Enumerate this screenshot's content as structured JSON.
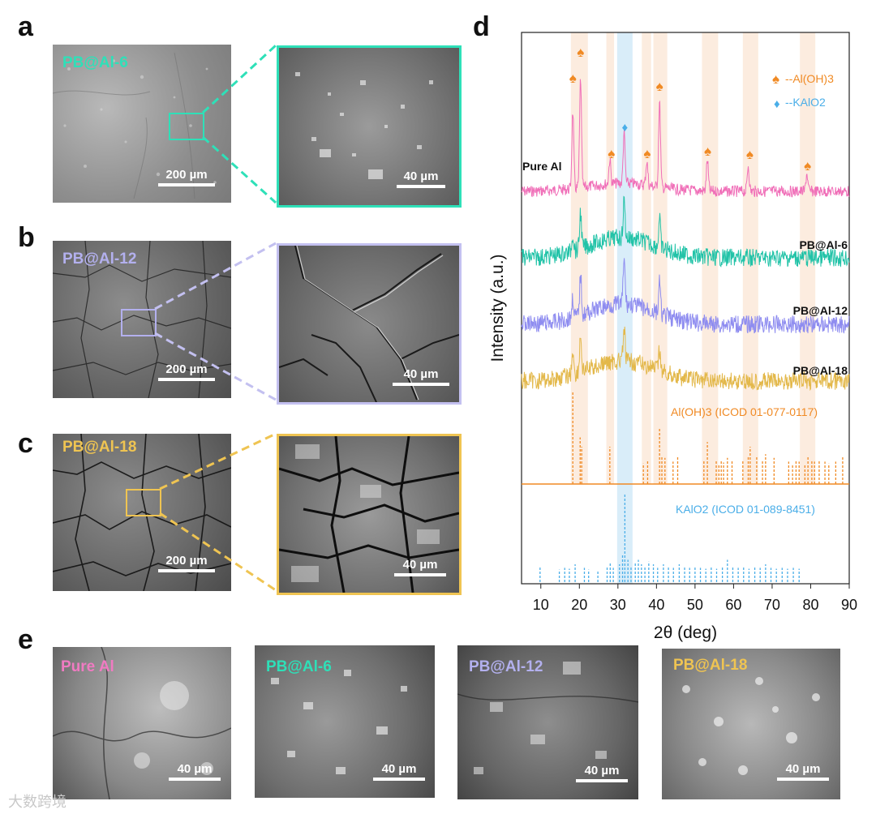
{
  "figure": {
    "panel_letters": [
      "a",
      "b",
      "c",
      "d",
      "e"
    ],
    "panels_abc": [
      {
        "label": "PB@Al-6",
        "color": "#2ee0b8",
        "overview_scale": "200 µm",
        "zoom_scale": "40 µm"
      },
      {
        "label": "PB@Al-12",
        "color": "#b3b0ee",
        "overview_scale": "200 µm",
        "zoom_scale": "40 µm"
      },
      {
        "label": "PB@Al-18",
        "color": "#efc452",
        "overview_scale": "200 µm",
        "zoom_scale": "40 µm"
      }
    ],
    "panel_e": [
      {
        "label": "Pure Al",
        "color": "#f07bc2",
        "scale": "40 µm"
      },
      {
        "label": "PB@Al-6",
        "color": "#2ee0b8",
        "scale": "40 µm"
      },
      {
        "label": "PB@Al-12",
        "color": "#b3b0ee",
        "scale": "40 µm"
      },
      {
        "label": "PB@Al-18",
        "color": "#efc452",
        "scale": "40 µm"
      }
    ],
    "watermark": "大数跨境"
  },
  "chart_data": {
    "type": "line",
    "xlabel": "2θ (deg)",
    "ylabel": "Intensity (a.u.)",
    "xlim": [
      5,
      90
    ],
    "xticks": [
      10,
      20,
      30,
      40,
      50,
      60,
      70,
      80,
      90
    ],
    "series": [
      {
        "name": "Pure Al",
        "color": "#f06fb8",
        "peaks": [
          18.3,
          20.3,
          27.9,
          31.6,
          37.5,
          40.8,
          53.2,
          63.8,
          79.0
        ]
      },
      {
        "name": "PB@Al-6",
        "color": "#22c3a8",
        "peaks": [
          18.3,
          20.3,
          31.6,
          40.8
        ]
      },
      {
        "name": "PB@Al-12",
        "color": "#8e8cf0",
        "peaks": [
          18.3,
          20.3,
          31.6,
          40.8
        ]
      },
      {
        "name": "PB@Al-18",
        "color": "#e3b84a",
        "peaks": [
          18.3,
          20.3,
          31.6,
          40.8
        ]
      }
    ],
    "highlight_bands_orange": [
      [
        17.8,
        22.2
      ],
      [
        27.0,
        29.0
      ],
      [
        36.2,
        38.6
      ],
      [
        39.2,
        42.8
      ],
      [
        51.8,
        56.0
      ],
      [
        62.4,
        66.4
      ],
      [
        77.2,
        81.2
      ]
    ],
    "highlight_bands_blue": [
      [
        29.8,
        33.8
      ]
    ],
    "legend": {
      "al_oh3": "--Al(OH)3",
      "kalo2": "--KAlO2",
      "al_oh3_color": "#f08a24",
      "kalo2_color": "#4aaee8"
    },
    "marked_peaks_alOH3": [
      18.3,
      20.3,
      28.3,
      37.6,
      40.8,
      53.3,
      64.2,
      79.2
    ],
    "marked_peaks_kalo2": [
      31.8
    ],
    "reference_alOH3": {
      "label": "Al(OH)3 (ICOD 01-077-0117)",
      "lines": [
        {
          "x": 18.3,
          "h": 1.0
        },
        {
          "x": 20.2,
          "h": 0.5
        },
        {
          "x": 20.6,
          "h": 0.4
        },
        {
          "x": 27.9,
          "h": 0.4
        },
        {
          "x": 36.6,
          "h": 0.22
        },
        {
          "x": 37.7,
          "h": 0.25
        },
        {
          "x": 40.8,
          "h": 0.6
        },
        {
          "x": 41.4,
          "h": 0.3
        },
        {
          "x": 42.2,
          "h": 0.28
        },
        {
          "x": 44.3,
          "h": 0.24
        },
        {
          "x": 45.5,
          "h": 0.3
        },
        {
          "x": 52.3,
          "h": 0.25
        },
        {
          "x": 53.2,
          "h": 0.45
        },
        {
          "x": 55.5,
          "h": 0.26
        },
        {
          "x": 56.2,
          "h": 0.2
        },
        {
          "x": 56.8,
          "h": 0.26
        },
        {
          "x": 57.4,
          "h": 0.23
        },
        {
          "x": 58.4,
          "h": 0.28
        },
        {
          "x": 59.6,
          "h": 0.25
        },
        {
          "x": 62.4,
          "h": 0.26
        },
        {
          "x": 63.8,
          "h": 0.3
        },
        {
          "x": 64.3,
          "h": 0.4
        },
        {
          "x": 66.0,
          "h": 0.3
        },
        {
          "x": 67.5,
          "h": 0.25
        },
        {
          "x": 68.3,
          "h": 0.32
        },
        {
          "x": 70.5,
          "h": 0.28
        },
        {
          "x": 74.3,
          "h": 0.24
        },
        {
          "x": 75.3,
          "h": 0.2
        },
        {
          "x": 76.2,
          "h": 0.26
        },
        {
          "x": 77.0,
          "h": 0.24
        },
        {
          "x": 78.5,
          "h": 0.2
        },
        {
          "x": 79.3,
          "h": 0.3
        },
        {
          "x": 80.3,
          "h": 0.25
        },
        {
          "x": 81.0,
          "h": 0.24
        },
        {
          "x": 82.2,
          "h": 0.26
        },
        {
          "x": 83.7,
          "h": 0.24
        },
        {
          "x": 84.7,
          "h": 0.22
        },
        {
          "x": 86.5,
          "h": 0.24
        },
        {
          "x": 88.3,
          "h": 0.3
        }
      ]
    },
    "reference_kalo2": {
      "label": "KAlO2 (ICOD 01-089-8451)",
      "lines": [
        {
          "x": 9.8,
          "h": 0.18
        },
        {
          "x": 14.8,
          "h": 0.14
        },
        {
          "x": 16.2,
          "h": 0.16
        },
        {
          "x": 17.4,
          "h": 0.15
        },
        {
          "x": 18.9,
          "h": 0.2
        },
        {
          "x": 21.3,
          "h": 0.16
        },
        {
          "x": 22.4,
          "h": 0.14
        },
        {
          "x": 24.8,
          "h": 0.13
        },
        {
          "x": 27.2,
          "h": 0.18
        },
        {
          "x": 28.0,
          "h": 0.22
        },
        {
          "x": 28.8,
          "h": 0.16
        },
        {
          "x": 30.4,
          "h": 0.2
        },
        {
          "x": 31.2,
          "h": 0.3
        },
        {
          "x": 31.8,
          "h": 1.0
        },
        {
          "x": 32.6,
          "h": 0.25
        },
        {
          "x": 33.4,
          "h": 0.18
        },
        {
          "x": 34.5,
          "h": 0.22
        },
        {
          "x": 35.3,
          "h": 0.25
        },
        {
          "x": 36.1,
          "h": 0.2
        },
        {
          "x": 37.0,
          "h": 0.18
        },
        {
          "x": 38.0,
          "h": 0.23
        },
        {
          "x": 39.2,
          "h": 0.2
        },
        {
          "x": 40.3,
          "h": 0.16
        },
        {
          "x": 41.8,
          "h": 0.2
        },
        {
          "x": 43.1,
          "h": 0.18
        },
        {
          "x": 44.4,
          "h": 0.16
        },
        {
          "x": 45.9,
          "h": 0.2
        },
        {
          "x": 47.3,
          "h": 0.18
        },
        {
          "x": 48.6,
          "h": 0.16
        },
        {
          "x": 50.0,
          "h": 0.18
        },
        {
          "x": 51.4,
          "h": 0.16
        },
        {
          "x": 52.8,
          "h": 0.15
        },
        {
          "x": 54.2,
          "h": 0.17
        },
        {
          "x": 55.6,
          "h": 0.15
        },
        {
          "x": 57.1,
          "h": 0.17
        },
        {
          "x": 58.4,
          "h": 0.25
        },
        {
          "x": 59.8,
          "h": 0.18
        },
        {
          "x": 61.2,
          "h": 0.16
        },
        {
          "x": 62.6,
          "h": 0.17
        },
        {
          "x": 64.0,
          "h": 0.15
        },
        {
          "x": 65.5,
          "h": 0.17
        },
        {
          "x": 66.9,
          "h": 0.16
        },
        {
          "x": 68.3,
          "h": 0.2
        },
        {
          "x": 69.7,
          "h": 0.16
        },
        {
          "x": 71.1,
          "h": 0.15
        },
        {
          "x": 72.6,
          "h": 0.16
        },
        {
          "x": 74.0,
          "h": 0.15
        },
        {
          "x": 75.5,
          "h": 0.16
        },
        {
          "x": 77.0,
          "h": 0.15
        }
      ]
    }
  }
}
